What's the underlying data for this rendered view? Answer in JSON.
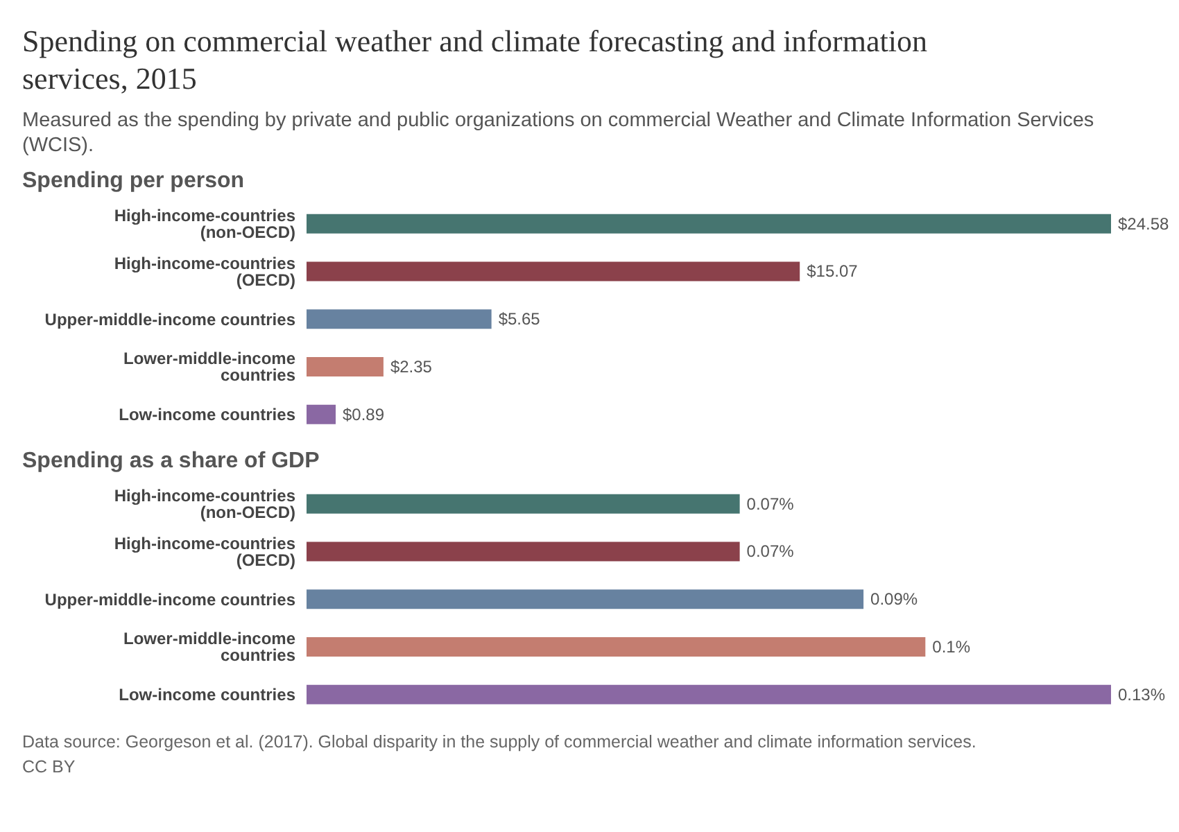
{
  "chart_data": [
    {
      "type": "other",
      "title": "Spending on commercial weather and climate forecasting and information services, 2015",
      "subtitle": "Measured as the spending by private and public organizations on commercial Weather and Climate Information Services (WCIS)."
    },
    {
      "type": "bar",
      "orientation": "horizontal",
      "title": "Spending per person",
      "categories": [
        "High-income-countries (non-OECD)",
        "High-income-countries (OECD)",
        "Upper-middle-income countries",
        "Lower-middle-income countries",
        "Low-income countries"
      ],
      "values": [
        24.58,
        15.07,
        5.65,
        2.35,
        0.89
      ],
      "value_labels": [
        "$24.58",
        "$15.07",
        "$5.65",
        "$2.35",
        "$0.89"
      ],
      "colors": [
        "#467570",
        "#8b414b",
        "#6782a0",
        "#c47d70",
        "#8a68a3"
      ]
    },
    {
      "type": "bar",
      "orientation": "horizontal",
      "title": "Spending as a share of GDP",
      "categories": [
        "High-income-countries (non-OECD)",
        "High-income-countries (OECD)",
        "Upper-middle-income countries",
        "Lower-middle-income countries",
        "Low-income countries"
      ],
      "values": [
        0.07,
        0.07,
        0.09,
        0.1,
        0.13
      ],
      "value_labels": [
        "0.07%",
        "0.07%",
        "0.09%",
        "0.1%",
        "0.13%"
      ],
      "colors": [
        "#467570",
        "#8b414b",
        "#6782a0",
        "#c47d70",
        "#8a68a3"
      ],
      "annotations": [
        "Data source: Georgeson et al. (2017). Global disparity in the supply of commercial weather and climate information services.",
        "CC BY"
      ]
    }
  ]
}
